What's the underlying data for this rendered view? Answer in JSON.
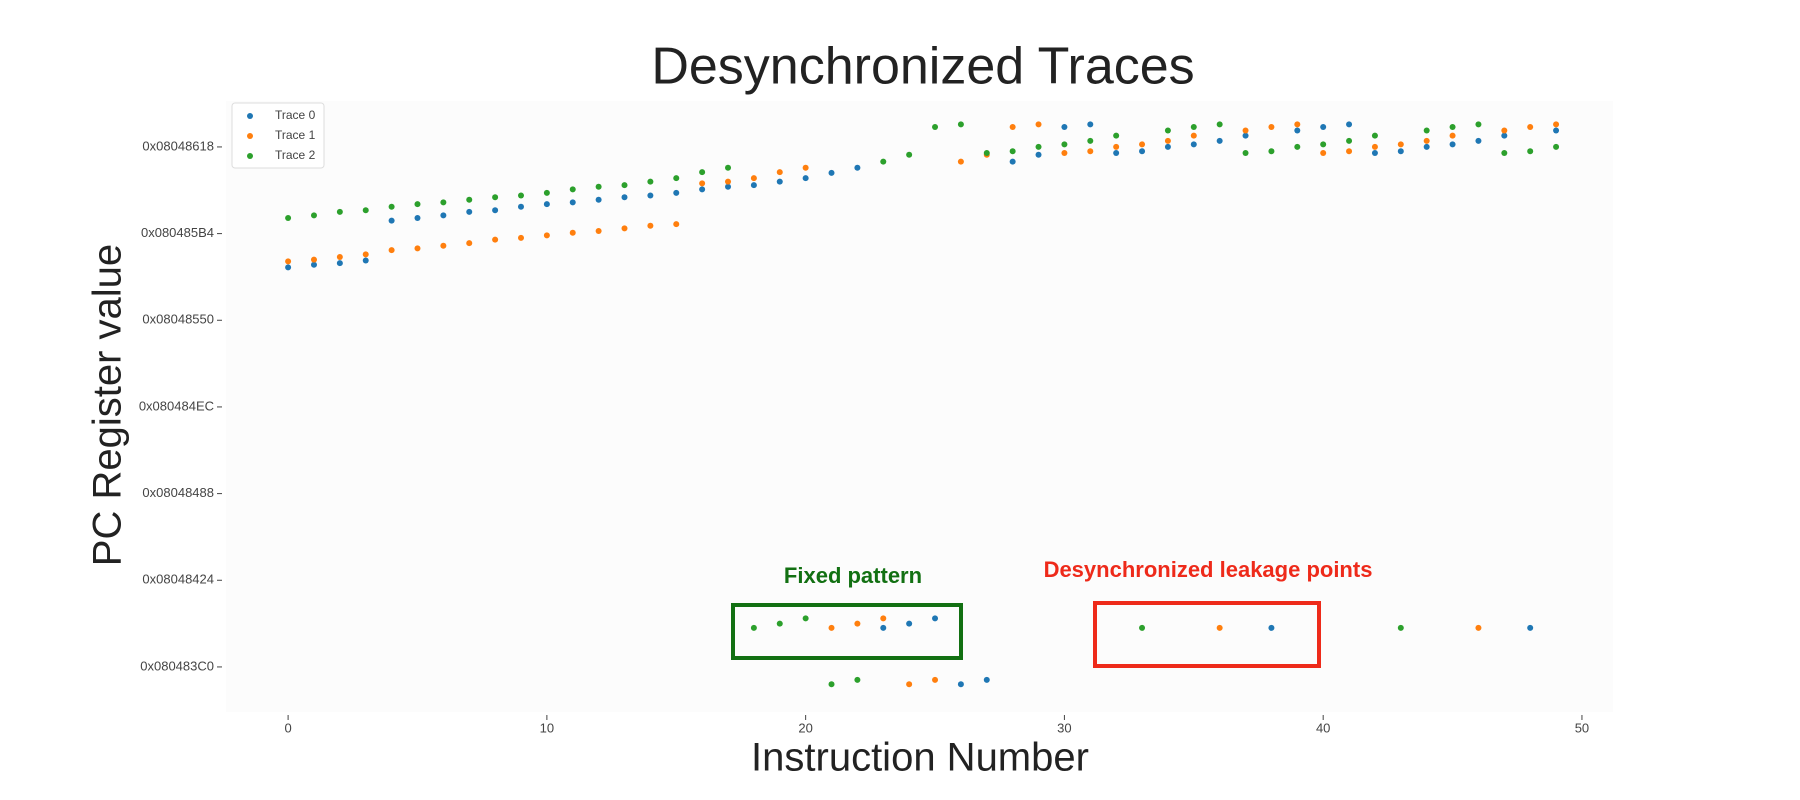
{
  "chart_data": {
    "type": "scatter",
    "title": "Desynchronized Traces",
    "x_label": "Instruction Number",
    "y_label": "PC Register value",
    "legend": "upper left",
    "x": [
      0,
      1,
      2,
      3,
      4,
      5,
      6,
      7,
      8,
      9,
      10,
      11,
      12,
      13,
      14,
      15,
      16,
      17,
      18,
      19,
      20,
      21,
      22,
      23,
      24,
      25,
      26,
      27,
      28,
      29,
      30,
      31,
      32,
      33,
      34,
      35,
      36,
      37,
      38,
      39,
      40,
      41,
      42,
      43,
      44,
      45,
      46,
      47,
      48,
      49
    ],
    "series": [
      {
        "name": "Trace 0",
        "color": "#1f77b4",
        "values": [
          134514061,
          134514064,
          134514066,
          134514069,
          134514115,
          134514118,
          134514121,
          134514125,
          134514127,
          134514131,
          134514134,
          134514136,
          134514139,
          134514142,
          134514144,
          134514147,
          134514151,
          134514154,
          134514156,
          134514160,
          134514164,
          134514170,
          134514176,
          134513645,
          134513650,
          134513656,
          134513580,
          134513585,
          134514183,
          134514191,
          134514223,
          134514226,
          134514193,
          134514195,
          134514200,
          134514203,
          134514207,
          134514213,
          134513645,
          134514219,
          134514223,
          134514226,
          134514193,
          134514195,
          134514200,
          134514203,
          134514207,
          134514213,
          134513645,
          134514219
        ]
      },
      {
        "name": "Trace 1",
        "color": "#ff7f0e",
        "values": [
          134514068,
          134514070,
          134514073,
          134514076,
          134514081,
          134514083,
          134514086,
          134514089,
          134514093,
          134514095,
          134514098,
          134514101,
          134514103,
          134514106,
          134514109,
          134514111,
          134514158,
          134514160,
          134514164,
          134514171,
          134514176,
          134513645,
          134513650,
          134513656,
          134513580,
          134513585,
          134514183,
          134514191,
          134514223,
          134514226,
          134514193,
          134514195,
          134514200,
          134514203,
          134514207,
          134514213,
          134513645,
          134514219,
          134514223,
          134514226,
          134514193,
          134514195,
          134514200,
          134514203,
          134514207,
          134514213,
          134513645,
          134514219,
          134514223,
          134514226
        ]
      },
      {
        "name": "Trace 2",
        "color": "#2ca02c",
        "values": [
          134514118,
          134514121,
          134514125,
          134514127,
          134514131,
          134514134,
          134514136,
          134514139,
          134514142,
          134514144,
          134514147,
          134514151,
          134514154,
          134514156,
          134514160,
          134514164,
          134514171,
          134514176,
          134513645,
          134513650,
          134513656,
          134513580,
          134513585,
          134514183,
          134514191,
          134514223,
          134514226,
          134514193,
          134514195,
          134514200,
          134514203,
          134514207,
          134514213,
          134513645,
          134514219,
          134514223,
          134514226,
          134514193,
          134514195,
          134514200,
          134514203,
          134514207,
          134514213,
          134513645,
          134514219,
          134514223,
          134514226,
          134514193,
          134514195,
          134514200
        ]
      }
    ],
    "xlim": [
      -2.4,
      51.2
    ],
    "xticks": [
      0,
      10,
      20,
      30,
      40,
      50
    ],
    "ylim": [
      134513548,
      134514253
    ],
    "yticks": [
      {
        "value": 134513600,
        "label": "0x080483C0"
      },
      {
        "value": 134513700,
        "label": "0x08048424"
      },
      {
        "value": 134513800,
        "label": "0x08048488"
      },
      {
        "value": 134513900,
        "label": "0x080484EC"
      },
      {
        "value": 134514000,
        "label": "0x08048550"
      },
      {
        "value": 134514100,
        "label": "0x080485B4"
      },
      {
        "value": 134514200,
        "label": "0x08048618"
      }
    ],
    "annotations": [
      "Fixed pattern",
      "Desynchronized leakage points"
    ]
  }
}
